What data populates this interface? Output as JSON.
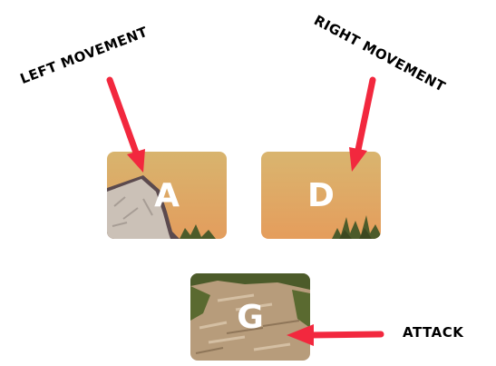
{
  "labels": {
    "left": "LEFT MOVEMENT",
    "right": "RIGHT MOVEMENT",
    "attack": "ATTACK"
  },
  "keys": {
    "a": "A",
    "d": "D",
    "g": "G"
  },
  "colors": {
    "arrow": "#f2283e",
    "sky_top": "#d9b36c",
    "sky_bottom": "#e59f5c",
    "rock": "#c8bfb5",
    "grass": "#4c5b2a",
    "dirt": "#b49a7b"
  },
  "icons": {
    "arrow": "red-arrow-icon"
  }
}
